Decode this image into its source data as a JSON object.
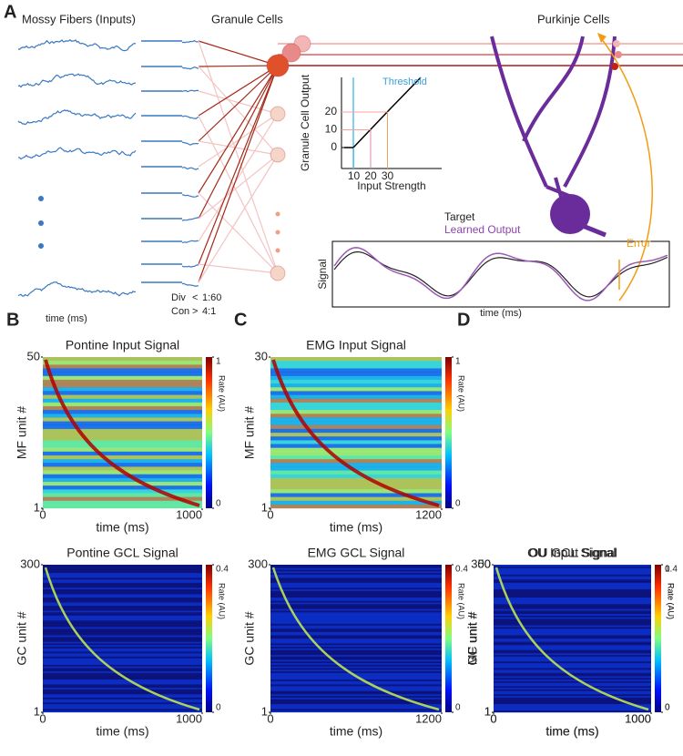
{
  "panel_a": {
    "label": "A",
    "mossy_fibers_title": "Mossy Fibers (Inputs)",
    "granule_title": "Granule Cells",
    "purkinje_title": "Purkinje Cells",
    "time_label": "time (ms)",
    "div_label": "Div",
    "div_value": "1:60",
    "con_label": "Con",
    "con_value": "4:1",
    "inset": {
      "ylabel": "Granule Cell Output",
      "xlabel": "Input Strength",
      "threshold": "Threshold",
      "yticks": [
        0,
        10,
        20
      ],
      "xticks": [
        10,
        20,
        30
      ]
    },
    "signal": {
      "target": "Target",
      "learned": "Learned Output",
      "ylabel": "Signal",
      "xlabel": "time (ms)",
      "error": "Error"
    }
  },
  "heatmaps": [
    {
      "label": "B",
      "title": "Pontine Input Signal",
      "ylabel": "MF unit #",
      "xlabel": "time (ms)",
      "yticks": [
        1,
        50
      ],
      "xticks": [
        0,
        1000
      ],
      "colorbar_label": "Rate (AU)",
      "cticks": [
        0,
        1
      ]
    },
    {
      "label": "C",
      "title": "EMG Input Signal",
      "ylabel": "MF unit #",
      "xlabel": "time (ms)",
      "yticks": [
        1,
        30
      ],
      "xticks": [
        0,
        1200
      ],
      "colorbar_label": "Rate (AU)",
      "cticks": [
        0,
        1
      ]
    },
    {
      "label": "D",
      "title": "OU Input Signal",
      "ylabel": "MF unit #",
      "xlabel": "time (ms)",
      "yticks": [
        1,
        50
      ],
      "xticks": [
        0,
        1000
      ],
      "colorbar_label": "Rate (AU)",
      "cticks": [
        0,
        1
      ]
    },
    {
      "title": "Pontine GCL Signal",
      "ylabel": "GC unit #",
      "xlabel": "time (ms)",
      "yticks": [
        1,
        300
      ],
      "xticks": [
        0,
        1000
      ],
      "colorbar_label": "Rate (AU)",
      "cticks": [
        0,
        0.4
      ]
    },
    {
      "title": "EMG GCL Signal",
      "ylabel": "GC unit #",
      "xlabel": "time (ms)",
      "yticks": [
        1,
        300
      ],
      "xticks": [
        0,
        1200
      ],
      "colorbar_label": "Rate (AU)",
      "cticks": [
        0,
        0.4
      ]
    },
    {
      "title": "OU GCL Signal",
      "ylabel": "GC unit #",
      "xlabel": "time (ms)",
      "yticks": [
        1,
        300
      ],
      "xticks": [
        0,
        1000
      ],
      "colorbar_label": "Rate (AU)",
      "cticks": [
        0,
        0.4
      ]
    }
  ]
}
